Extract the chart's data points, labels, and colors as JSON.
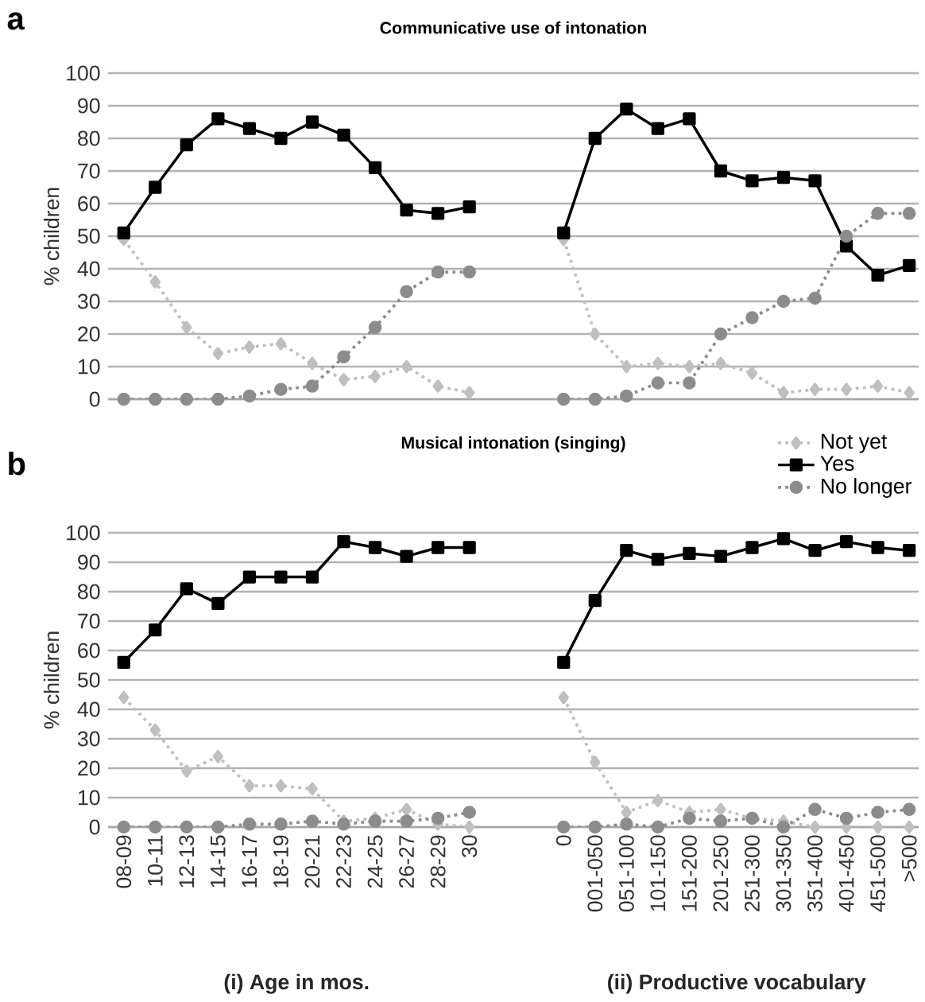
{
  "chart_data": [
    {
      "type": "line",
      "title": "Communicative use of intonation",
      "ylabel": "% children",
      "annotations": [
        "a"
      ],
      "categories": [
        null,
        null,
        null,
        null,
        null,
        null,
        null,
        null,
        null,
        null,
        null,
        null,
        null,
        null,
        null,
        null,
        null,
        null,
        null,
        null,
        null,
        null,
        null,
        null,
        null,
        null
      ],
      "ylim": [
        0,
        100
      ],
      "yticks": [
        0,
        10,
        20,
        30,
        40,
        50,
        60,
        70,
        80,
        90,
        100
      ],
      "grid": "y",
      "tick_labels": "y",
      "series": [
        {
          "color": "#bfbfbf",
          "marker": "diamond",
          "line_style": "dotted",
          "values": [
            49,
            36,
            22,
            14,
            16,
            17,
            11,
            6,
            7,
            10,
            4,
            2,
            null,
            null,
            49,
            20,
            10,
            11,
            10,
            11,
            8,
            2,
            3,
            3,
            4,
            2
          ]
        },
        {
          "color": "#000000",
          "marker": "square",
          "line_style": "solid",
          "values": [
            51,
            65,
            78,
            86,
            83,
            80,
            85,
            81,
            71,
            58,
            57,
            59,
            null,
            null,
            51,
            80,
            89,
            83,
            86,
            70,
            67,
            68,
            67,
            47,
            38,
            41
          ]
        },
        {
          "color": "#8c8c8c",
          "marker": "circle",
          "line_style": "dotted",
          "values": [
            0,
            0,
            0,
            0,
            1,
            3,
            4,
            13,
            22,
            33,
            39,
            39,
            null,
            null,
            0,
            0,
            1,
            5,
            5,
            20,
            25,
            30,
            31,
            50,
            57,
            57
          ]
        }
      ]
    },
    {
      "type": "line",
      "title": "Musical intonation (singing)",
      "ylabel": "% children",
      "annotations": [
        "b",
        "(i) Age in mos.",
        "(ii) Productive vocabulary"
      ],
      "categories": [
        "08-09",
        "10-11",
        "12-13",
        "14-15",
        "16-17",
        "18-19",
        "20-21",
        "22-23",
        "24-25",
        "26-27",
        "28-29",
        "30",
        null,
        null,
        "0",
        "001-050",
        "051-100",
        "101-150",
        "151-200",
        "201-250",
        "251-300",
        "301-350",
        "351-400",
        "401-450",
        "451-500",
        ">500"
      ],
      "ylim": [
        0,
        100
      ],
      "yticks": [
        0,
        10,
        20,
        30,
        40,
        50,
        60,
        70,
        80,
        90,
        100
      ],
      "grid": "y",
      "legend": "top right",
      "series": [
        {
          "name": "Not yet",
          "color": "#bfbfbf",
          "marker": "diamond",
          "line_style": "dotted",
          "values": [
            44,
            33,
            19,
            24,
            14,
            14,
            13,
            2,
            3,
            6,
            1,
            0,
            null,
            null,
            44,
            22,
            5,
            9,
            5,
            6,
            3,
            2,
            0,
            0,
            0,
            0
          ]
        },
        {
          "name": "Yes",
          "color": "#000000",
          "marker": "square",
          "line_style": "solid",
          "values": [
            56,
            67,
            81,
            76,
            85,
            85,
            85,
            97,
            95,
            92,
            95,
            95,
            null,
            null,
            56,
            77,
            94,
            91,
            93,
            92,
            95,
            98,
            94,
            97,
            95,
            94
          ]
        },
        {
          "name": "No longer",
          "color": "#8c8c8c",
          "marker": "circle",
          "line_style": "dotted",
          "values": [
            0,
            0,
            0,
            0,
            1,
            1,
            2,
            1,
            2,
            2,
            3,
            5,
            null,
            null,
            0,
            0,
            1,
            0,
            3,
            2,
            3,
            0,
            6,
            3,
            5,
            6
          ]
        }
      ]
    }
  ]
}
